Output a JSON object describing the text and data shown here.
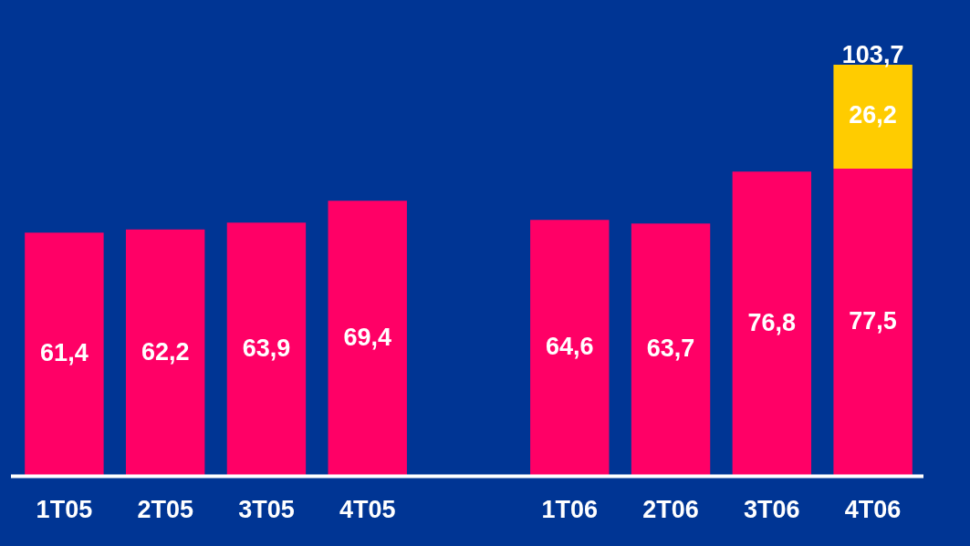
{
  "chart_data": {
    "type": "bar",
    "stacked": true,
    "categories": [
      "1T05",
      "2T05",
      "3T05",
      "4T05",
      null,
      "1T06",
      "2T06",
      "3T06",
      "4T06"
    ],
    "series": [
      {
        "color": "#ff0066",
        "values": [
          61.4,
          62.2,
          63.9,
          69.4,
          null,
          64.6,
          63.7,
          76.8,
          77.5
        ],
        "value_labels": [
          "61,4",
          "62,2",
          "63,9",
          "69,4",
          null,
          "64,6",
          "63,7",
          "76,8",
          "77,5"
        ]
      },
      {
        "color": "#ffcc00",
        "values": [
          null,
          null,
          null,
          null,
          null,
          null,
          null,
          null,
          26.2
        ],
        "value_labels": [
          null,
          null,
          null,
          null,
          null,
          null,
          null,
          null,
          "26,2"
        ]
      }
    ],
    "totals": [
      null,
      null,
      null,
      null,
      null,
      null,
      null,
      null,
      "103,7"
    ],
    "grid": false,
    "legend": false
  }
}
